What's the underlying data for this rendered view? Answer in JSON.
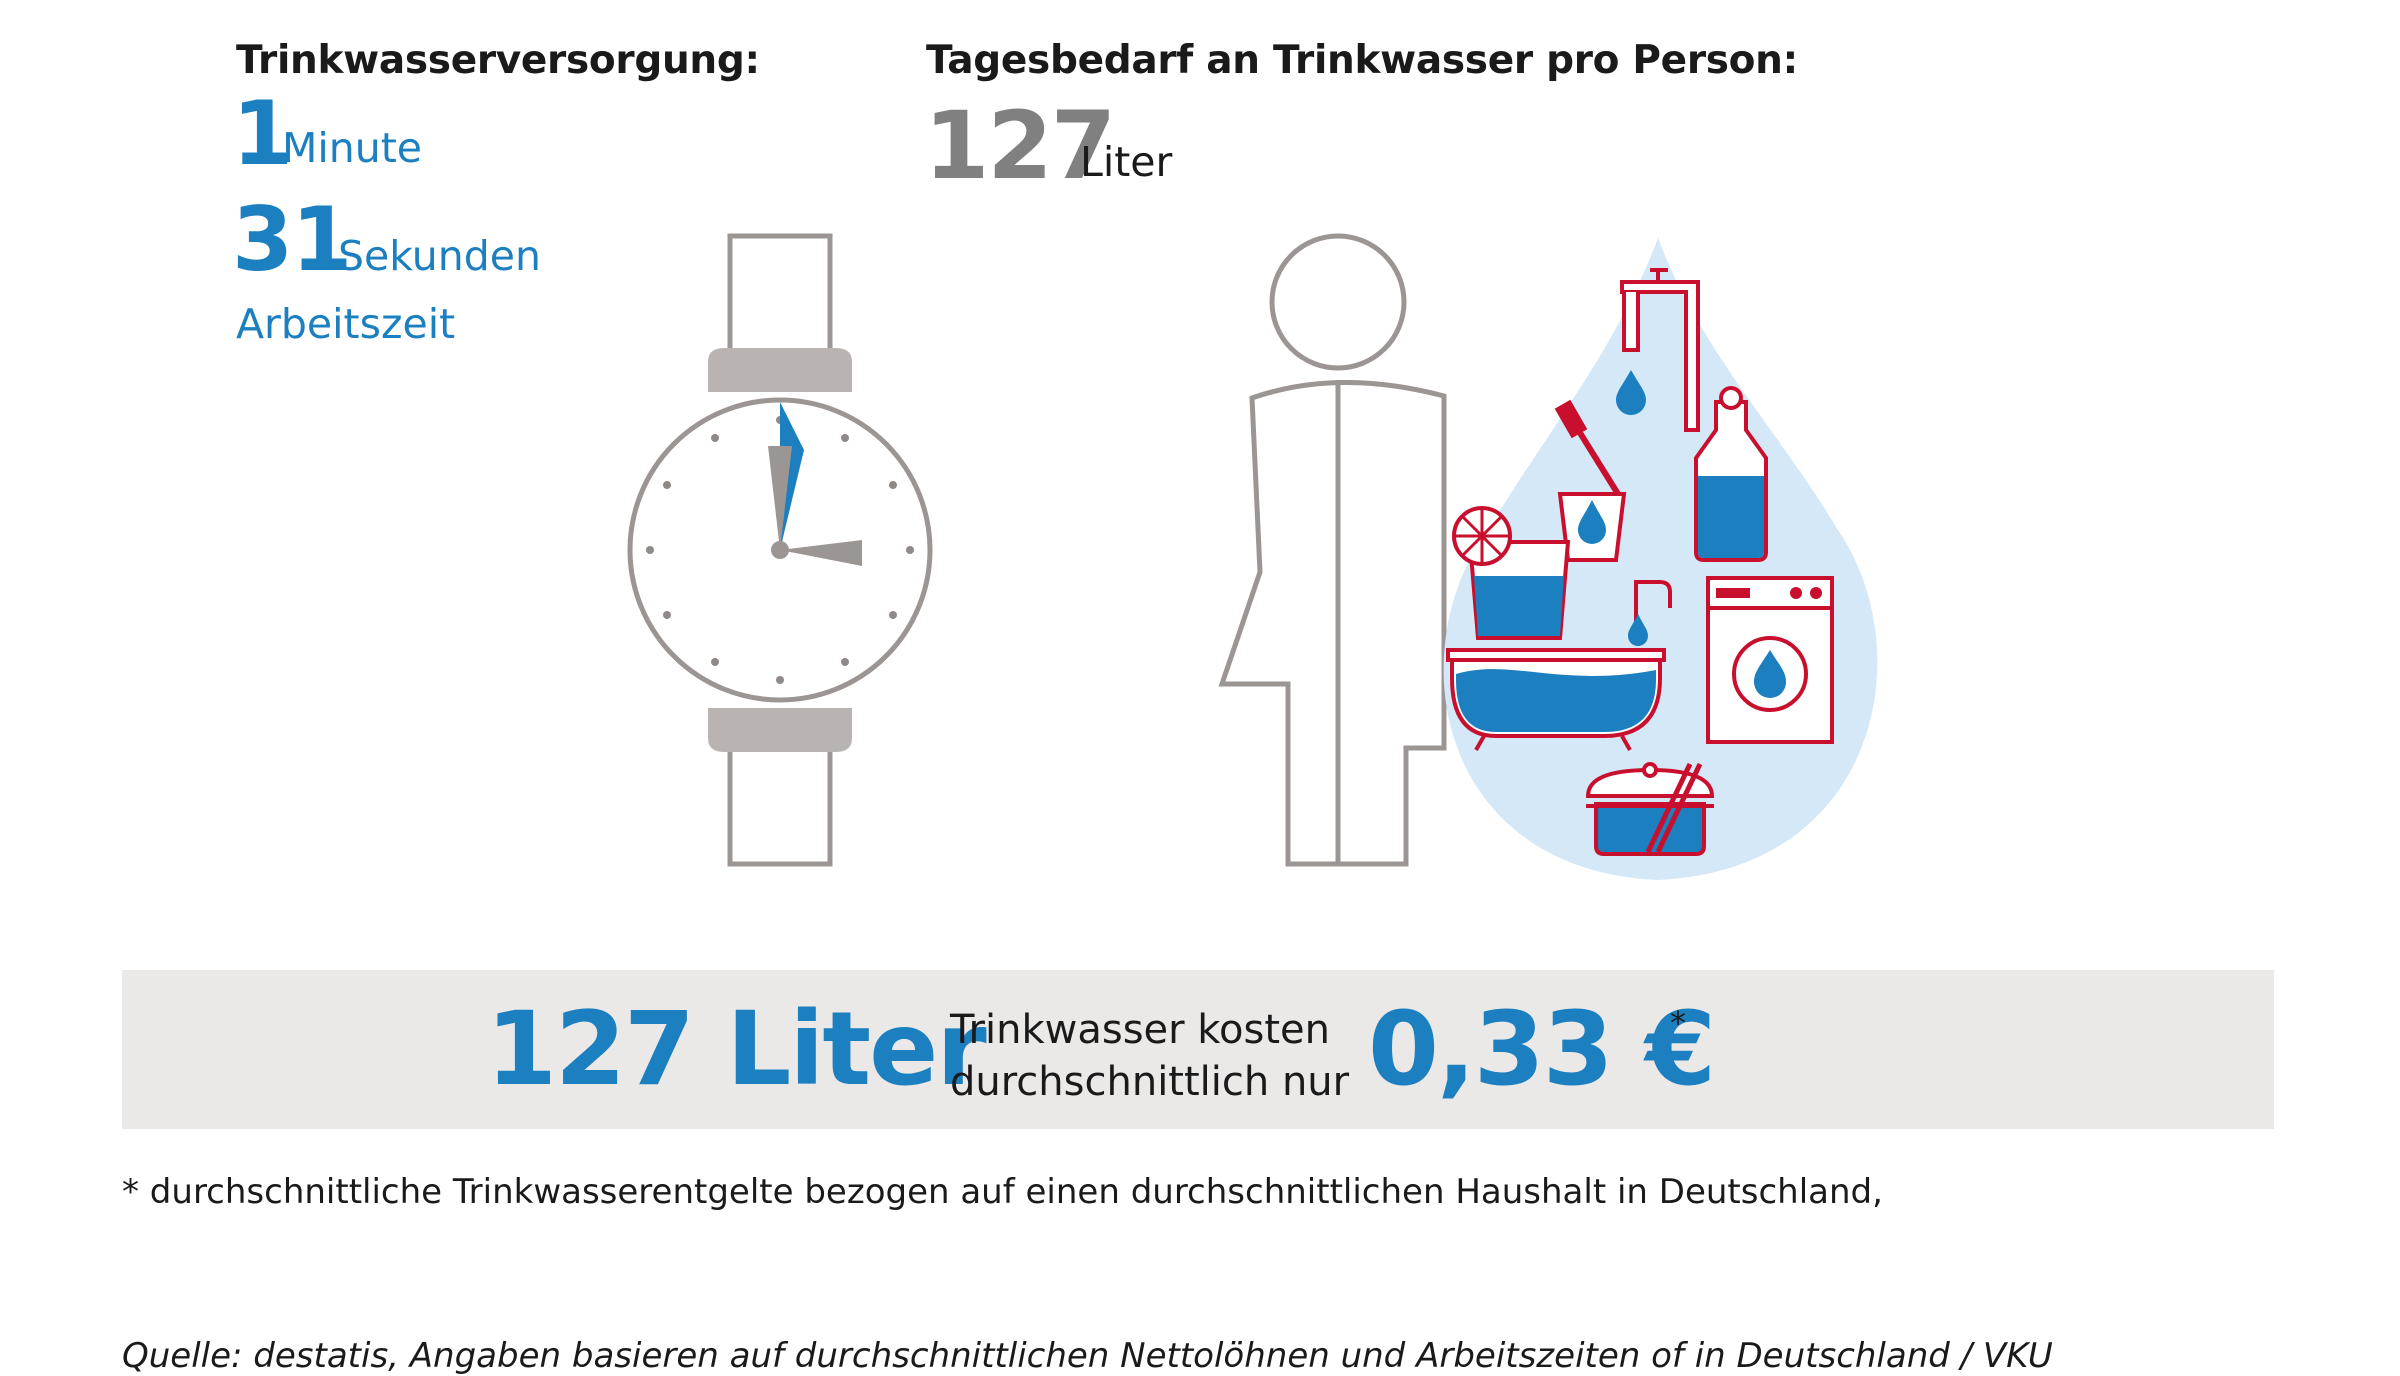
{
  "left_block": {
    "heading": "Trinkwasserversorgung:",
    "minutes_value": "1",
    "minutes_unit": "Minute",
    "seconds_value": "31",
    "seconds_unit": "Sekunden",
    "caption": "Arbeitszeit"
  },
  "right_block": {
    "heading": "Tagesbedarf an Trinkwasser pro Person:",
    "value": "127",
    "unit": "Liter"
  },
  "banner": {
    "amount": "127 Liter",
    "line1": "Trinkwasser kosten",
    "line2": "durchschnittlich nur",
    "price": "0,33 €",
    "asterisk": "*"
  },
  "footnote": "* durchschnittliche Trinkwasserentgelte bezogen auf einen durchschnittlichen Haushalt in Deutschland,",
  "source": "Quelle: destatis, Angaben basieren auf durchschnittlichen Nettolöhnen und Arbeitszeiten of in Deutschland / VKU",
  "colors": {
    "blue": "#1b7fc0",
    "gray": "#808080",
    "outline": "#9b9593",
    "red": "#c8102e",
    "drop": "#d5e8f7",
    "banner": "#ebe9e8"
  },
  "icons": [
    "watch-icon",
    "person-icon",
    "water-drop-icon",
    "tap-icon",
    "toothbrush-glass-icon",
    "hot-water-bottle-icon",
    "drink-glass-icon",
    "bathtub-icon",
    "washing-machine-icon",
    "cooking-pot-icon"
  ]
}
